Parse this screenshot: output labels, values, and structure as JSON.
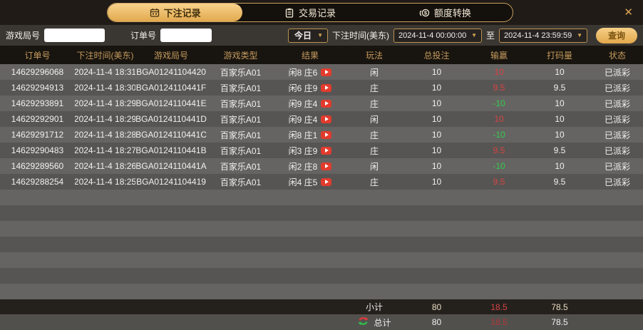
{
  "tabs": [
    {
      "label": "下注记录",
      "icon": "betting-record-icon",
      "active": true
    },
    {
      "label": "交易记录",
      "icon": "transaction-record-icon",
      "active": false
    },
    {
      "label": "额度转换",
      "icon": "quota-transfer-icon",
      "active": false
    }
  ],
  "close_icon": "✕",
  "filters": {
    "game_round_label": "游戏局号",
    "game_round_value": "",
    "order_no_label": "订单号",
    "order_no_value": "",
    "range_selected": "今日",
    "bet_time_label": "下注时间(美东)",
    "date_from": "2024-11-4 00:00:00",
    "to_label": "至",
    "date_to": "2024-11-4 23:59:59",
    "query_label": "查询"
  },
  "table": {
    "headers": [
      "订单号",
      "下注时间(美东)",
      "游戏局号",
      "游戏类型",
      "结果",
      "玩法",
      "总投注",
      "输赢",
      "打码量",
      "状态"
    ],
    "empty_row_count": 7,
    "rows": [
      {
        "order_no": "14629296068",
        "bet_time": "2024-11-4 18:31",
        "game_round": "BGA01241104420",
        "game_type": "百家乐A01",
        "result": "闲8 庄6",
        "play": "闲",
        "total_bet": "10",
        "win_loss": "10",
        "turnover": "10",
        "status": "已派彩"
      },
      {
        "order_no": "14629294913",
        "bet_time": "2024-11-4 18:30",
        "game_round": "BGA0124110441F",
        "game_type": "百家乐A01",
        "result": "闲6 庄9",
        "play": "庄",
        "total_bet": "10",
        "win_loss": "9.5",
        "turnover": "9.5",
        "status": "已派彩"
      },
      {
        "order_no": "14629293891",
        "bet_time": "2024-11-4 18:29",
        "game_round": "BGA0124110441E",
        "game_type": "百家乐A01",
        "result": "闲9 庄4",
        "play": "庄",
        "total_bet": "10",
        "win_loss": "-10",
        "turnover": "10",
        "status": "已派彩"
      },
      {
        "order_no": "14629292901",
        "bet_time": "2024-11-4 18:29",
        "game_round": "BGA0124110441D",
        "game_type": "百家乐A01",
        "result": "闲9 庄4",
        "play": "闲",
        "total_bet": "10",
        "win_loss": "10",
        "turnover": "10",
        "status": "已派彩"
      },
      {
        "order_no": "14629291712",
        "bet_time": "2024-11-4 18:28",
        "game_round": "BGA0124110441C",
        "game_type": "百家乐A01",
        "result": "闲8 庄1",
        "play": "庄",
        "total_bet": "10",
        "win_loss": "-10",
        "turnover": "10",
        "status": "已派彩"
      },
      {
        "order_no": "14629290483",
        "bet_time": "2024-11-4 18:27",
        "game_round": "BGA0124110441B",
        "game_type": "百家乐A01",
        "result": "闲3 庄9",
        "play": "庄",
        "total_bet": "10",
        "win_loss": "9.5",
        "turnover": "9.5",
        "status": "已派彩"
      },
      {
        "order_no": "14629289560",
        "bet_time": "2024-11-4 18:26",
        "game_round": "BGA0124110441A",
        "game_type": "百家乐A01",
        "result": "闲2 庄8",
        "play": "闲",
        "total_bet": "10",
        "win_loss": "-10",
        "turnover": "10",
        "status": "已派彩"
      },
      {
        "order_no": "14629288254",
        "bet_time": "2024-11-4 18:25",
        "game_round": "BGA01241104419",
        "game_type": "百家乐A01",
        "result": "闲4 庄5",
        "play": "庄",
        "total_bet": "10",
        "win_loss": "9.5",
        "turnover": "9.5",
        "status": "已派彩"
      }
    ]
  },
  "summary": {
    "subtotal_label": "小计",
    "subtotal": {
      "total_bet": "80",
      "win_loss": "18.5",
      "turnover": "78.5"
    },
    "total_label": "总计",
    "total": {
      "total_bet": "80",
      "win_loss": "18.5",
      "turnover": "78.5"
    },
    "total_icon": "swap-arrows-icon"
  },
  "colors": {
    "accent_gold": "#e2a94e",
    "border_gold": "#c9a05e",
    "win_red": "#d64444",
    "loss_green": "#32cc4e",
    "row_light": "#666462",
    "row_dark": "#575553"
  }
}
